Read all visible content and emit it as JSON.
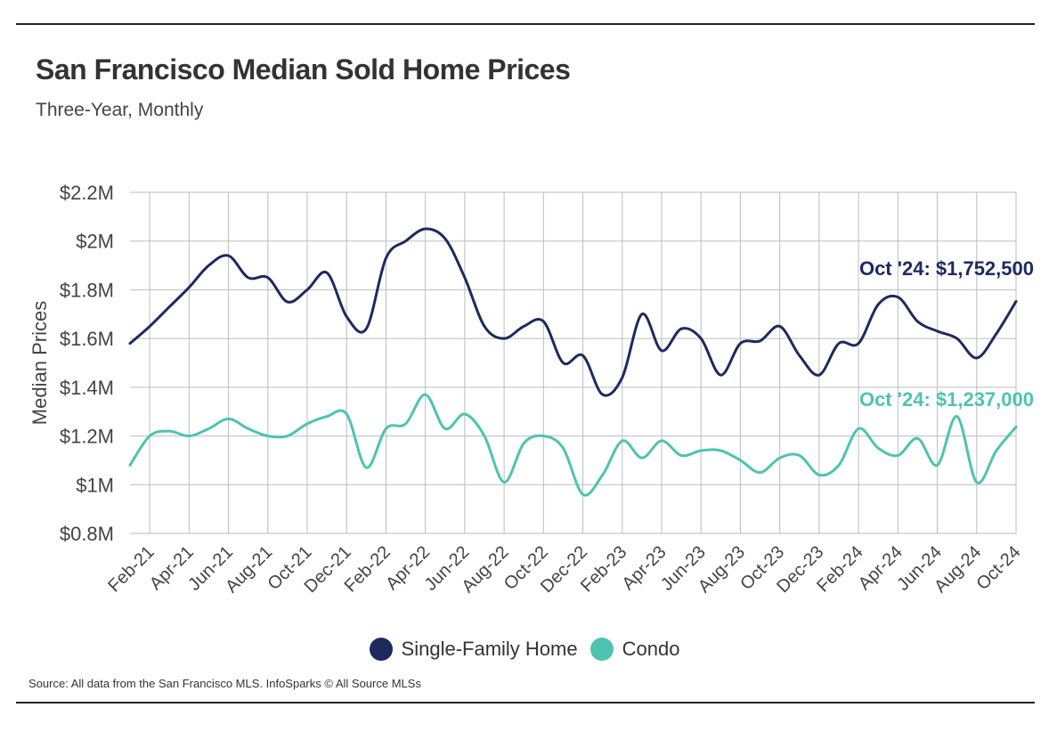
{
  "header": {
    "title": "San Francisco Median Sold Home Prices",
    "subtitle": "Three-Year, Monthly"
  },
  "footer": {
    "source": "Source:  All data from the San Francisco MLS. InfoSparks © All Source MLSs"
  },
  "colors": {
    "single_family": "#1c2b5e",
    "condo": "#4ec3b0",
    "grid": "#bdbdbd"
  },
  "chart_data": {
    "type": "line",
    "title": "San Francisco Median Sold Home Prices",
    "subtitle": "Three-Year, Monthly",
    "xlabel": "",
    "ylabel": "Median Prices",
    "ylim": [
      800000,
      2200000
    ],
    "yticks": [
      800000,
      1000000,
      1200000,
      1400000,
      1600000,
      1800000,
      2000000,
      2200000
    ],
    "ytick_labels": [
      "$0.8M",
      "$1M",
      "$1.2M",
      "$1.4M",
      "$1.6M",
      "$1.8M",
      "$2M",
      "$2.2M"
    ],
    "grid": true,
    "legend_position": "bottom",
    "categories": [
      "Jan-21",
      "Feb-21",
      "Mar-21",
      "Apr-21",
      "May-21",
      "Jun-21",
      "Jul-21",
      "Aug-21",
      "Sep-21",
      "Oct-21",
      "Nov-21",
      "Dec-21",
      "Jan-22",
      "Feb-22",
      "Mar-22",
      "Apr-22",
      "May-22",
      "Jun-22",
      "Jul-22",
      "Aug-22",
      "Sep-22",
      "Oct-22",
      "Nov-22",
      "Dec-22",
      "Jan-23",
      "Feb-23",
      "Mar-23",
      "Apr-23",
      "May-23",
      "Jun-23",
      "Jul-23",
      "Aug-23",
      "Sep-23",
      "Oct-23",
      "Nov-23",
      "Dec-23",
      "Jan-24",
      "Feb-24",
      "Mar-24",
      "Apr-24",
      "May-24",
      "Jun-24",
      "Jul-24",
      "Aug-24",
      "Sep-24",
      "Oct-24"
    ],
    "xtick_labels": [
      "Feb-21",
      "Apr-21",
      "Jun-21",
      "Aug-21",
      "Oct-21",
      "Dec-21",
      "Feb-22",
      "Apr-22",
      "Jun-22",
      "Aug-22",
      "Oct-22",
      "Dec-22",
      "Feb-23",
      "Apr-23",
      "Jun-23",
      "Aug-23",
      "Oct-23",
      "Dec-23",
      "Feb-24",
      "Apr-24",
      "Jun-24",
      "Aug-24",
      "Oct-24"
    ],
    "series": [
      {
        "name": "Single-Family Home",
        "color": "#1c2b5e",
        "values": [
          1580000,
          1650000,
          1730000,
          1810000,
          1900000,
          1940000,
          1850000,
          1850000,
          1750000,
          1800000,
          1870000,
          1690000,
          1640000,
          1930000,
          2000000,
          2050000,
          2010000,
          1850000,
          1650000,
          1600000,
          1650000,
          1670000,
          1500000,
          1530000,
          1370000,
          1440000,
          1700000,
          1550000,
          1640000,
          1600000,
          1450000,
          1580000,
          1590000,
          1650000,
          1530000,
          1450000,
          1580000,
          1580000,
          1740000,
          1770000,
          1670000,
          1630000,
          1600000,
          1520000,
          1620000,
          1752500
        ],
        "annotation": "Oct '24: $1,752,500"
      },
      {
        "name": "Condo",
        "color": "#4ec3b0",
        "values": [
          1080000,
          1200000,
          1220000,
          1200000,
          1230000,
          1270000,
          1230000,
          1200000,
          1200000,
          1250000,
          1280000,
          1290000,
          1070000,
          1230000,
          1250000,
          1370000,
          1230000,
          1290000,
          1200000,
          1010000,
          1170000,
          1200000,
          1150000,
          960000,
          1040000,
          1180000,
          1110000,
          1180000,
          1120000,
          1140000,
          1140000,
          1100000,
          1050000,
          1110000,
          1120000,
          1040000,
          1080000,
          1230000,
          1150000,
          1120000,
          1190000,
          1080000,
          1280000,
          1010000,
          1140000,
          1237000
        ],
        "annotation": "Oct '24: $1,237,000"
      }
    ]
  }
}
